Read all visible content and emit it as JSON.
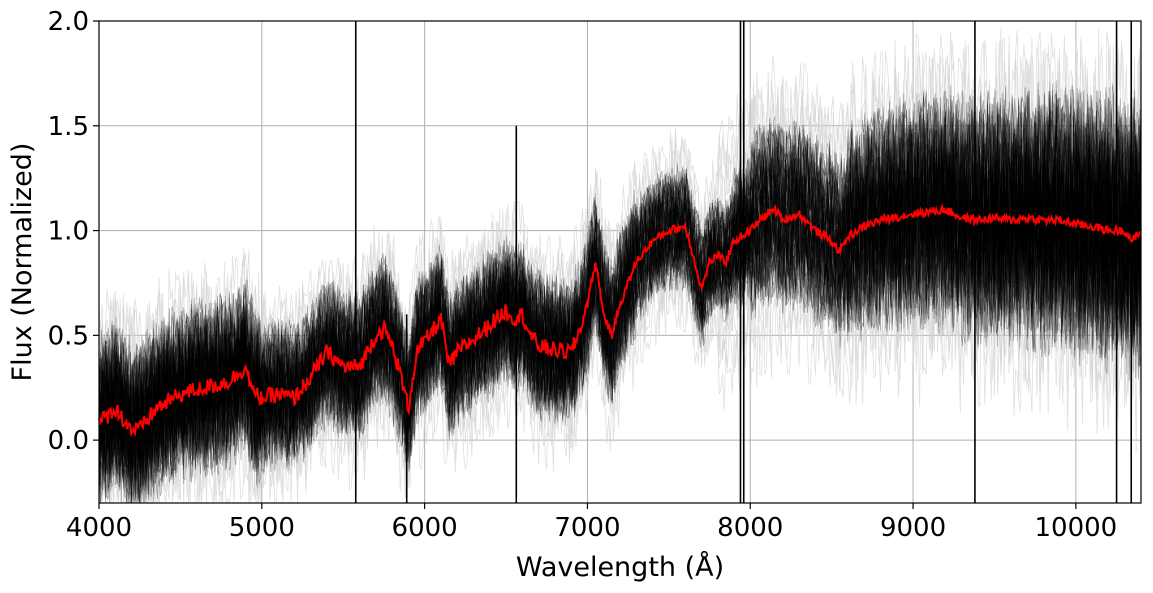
{
  "chart_data": {
    "type": "line",
    "xlabel": "Wavelength (Å)",
    "ylabel": "Flux (Normalized)",
    "xlim": [
      4000,
      10400
    ],
    "ylim": [
      -0.3,
      2.0
    ],
    "xticks": [
      4000,
      5000,
      6000,
      7000,
      8000,
      9000,
      10000
    ],
    "xtick_labels": [
      "4000",
      "5000",
      "6000",
      "7000",
      "8000",
      "9000",
      "10000"
    ],
    "yticks": [
      0.0,
      0.5,
      1.0,
      1.5,
      2.0
    ],
    "ytick_labels": [
      "0.0",
      "0.5",
      "1.0",
      "1.5",
      "2.0"
    ],
    "grid": true,
    "colors": {
      "individual_spectra": "#000000",
      "mean_spectrum": "#ff0000",
      "faint_spectra": "#d3d3d3"
    },
    "series": [
      {
        "role": "mean-spectrum",
        "color": "#ff0000",
        "x": [
          4000,
          4100,
          4200,
          4250,
          4350,
          4500,
          4650,
          4800,
          4900,
          4950,
          5000,
          5100,
          5200,
          5300,
          5400,
          5500,
          5600,
          5700,
          5750,
          5800,
          5850,
          5900,
          5950,
          6050,
          6100,
          6150,
          6200,
          6300,
          6400,
          6500,
          6550,
          6600,
          6650,
          6700,
          6800,
          6900,
          6950,
          7000,
          7050,
          7100,
          7150,
          7200,
          7300,
          7400,
          7500,
          7600,
          7650,
          7700,
          7750,
          7800,
          7850,
          7900,
          8000,
          8100,
          8150,
          8200,
          8300,
          8400,
          8500,
          8550,
          8600,
          8700,
          8800,
          9000,
          9200,
          9300,
          9400,
          9500,
          9600,
          9700,
          9800,
          9900,
          10000,
          10100,
          10200,
          10300,
          10350,
          10400
        ],
        "y": [
          0.08,
          0.15,
          0.05,
          0.05,
          0.15,
          0.22,
          0.25,
          0.28,
          0.35,
          0.22,
          0.2,
          0.22,
          0.2,
          0.3,
          0.42,
          0.35,
          0.35,
          0.5,
          0.53,
          0.45,
          0.32,
          0.15,
          0.42,
          0.52,
          0.58,
          0.35,
          0.42,
          0.48,
          0.55,
          0.62,
          0.58,
          0.6,
          0.5,
          0.45,
          0.43,
          0.42,
          0.52,
          0.65,
          0.85,
          0.6,
          0.5,
          0.65,
          0.85,
          0.95,
          1.0,
          1.02,
          0.88,
          0.72,
          0.85,
          0.88,
          0.85,
          0.95,
          1.0,
          1.08,
          1.1,
          1.05,
          1.08,
          1.0,
          0.95,
          0.9,
          0.97,
          1.02,
          1.05,
          1.08,
          1.1,
          1.06,
          1.05,
          1.06,
          1.05,
          1.06,
          1.05,
          1.05,
          1.03,
          1.02,
          1.0,
          1.0,
          0.95,
          1.0
        ]
      }
    ]
  }
}
